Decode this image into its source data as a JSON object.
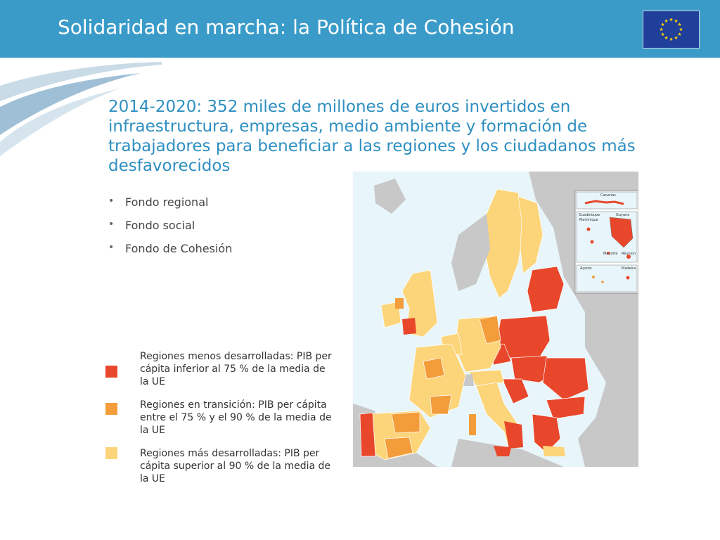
{
  "header": {
    "title": "Solidaridad en marcha: la Política de Cohesión",
    "flag_icon": "eu-flag-icon"
  },
  "subtitle": "2014-2020: 352 miles de millones de euros invertidos en infraestructura, empresas, medio ambiente y formación de trabajadores para beneficiar a las regiones y los ciudadanos más desfavorecidos",
  "bullets": [
    "Fondo regional",
    "Fondo social",
    "Fondo de Cohesión"
  ],
  "legend": [
    {
      "label": "Regiones menos desarrolladas: PIB per cápita inferior al 75 % de la media de la UE",
      "color": "#e8472b"
    },
    {
      "label": "Regiones en transición: PIB per cápita entre el 75 % y el 90 % de la media de la UE",
      "color": "#f39c3a"
    },
    {
      "label": "Regiones más desarrolladas: PIB per cápita superior al 90 % de la media de la UE",
      "color": "#fcd57a"
    }
  ],
  "map": {
    "insets": [
      "Canarias",
      "Guadeloupe",
      "Martinique",
      "Guyane",
      "Mayotte",
      "Réunion",
      "Açores",
      "Madeira"
    ]
  },
  "colors": {
    "header": "#3a9bc9",
    "sea": "#e8f6fb",
    "non_eu": "#c8c8c8",
    "less_developed": "#e8472b",
    "transition": "#f39c3a",
    "more_developed": "#fcd57a"
  }
}
